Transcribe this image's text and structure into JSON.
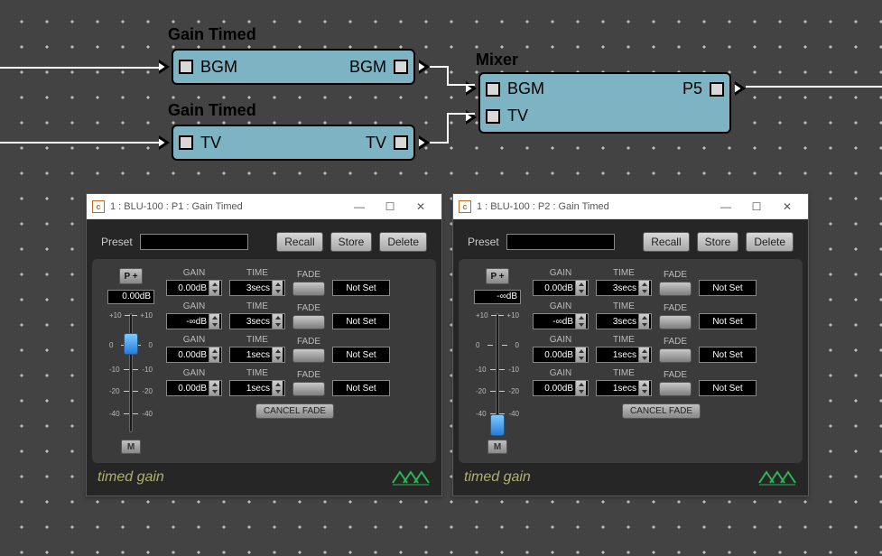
{
  "canvas": {
    "node_a": {
      "title": "Gain Timed",
      "in_label": "BGM",
      "out_label": "BGM"
    },
    "node_b": {
      "title": "Gain Timed",
      "in_label": "TV",
      "out_label": "TV"
    },
    "mixer": {
      "title": "Mixer",
      "in1": "BGM",
      "in2": "TV",
      "out_label": "P5"
    },
    "colors": {
      "node_fill": "#7eb3c4",
      "node_border": "#000000",
      "wire": "#ffffff",
      "bg": "#434343"
    }
  },
  "editor1": {
    "title": "1 : BLU-100 : P1 : Gain Timed",
    "preset_label": "Preset",
    "buttons": {
      "recall": "Recall",
      "store": "Store",
      "delete": "Delete",
      "cancel_fade": "CANCEL FADE"
    },
    "pplus": "P +",
    "mute": "M",
    "readout": "0.00dB",
    "slider_pos_pct": 24,
    "ticks": [
      "+10",
      "+10",
      "0",
      "0",
      "-10",
      "-10",
      "-20",
      "-20",
      "-40",
      "-40"
    ],
    "rows": [
      {
        "gain": "0.00dB",
        "time": "3secs",
        "notset": "Not Set",
        "labels": {
          "gain": "GAIN",
          "time": "TIME",
          "fade": "FADE"
        }
      },
      {
        "gain": "-∞dB",
        "time": "3secs",
        "notset": "Not Set",
        "labels": {
          "gain": "GAIN",
          "time": "TIME",
          "fade": "FADE"
        }
      },
      {
        "gain": "0.00dB",
        "time": "1secs",
        "notset": "Not Set",
        "labels": {
          "gain": "GAIN",
          "time": "TIME",
          "fade": "FADE"
        }
      },
      {
        "gain": "0.00dB",
        "time": "1secs",
        "notset": "Not Set",
        "labels": {
          "gain": "GAIN",
          "time": "TIME",
          "fade": "FADE"
        }
      }
    ],
    "footer": "timed gain"
  },
  "editor2": {
    "title": "1 : BLU-100 : P2 : Gain Timed",
    "preset_label": "Preset",
    "buttons": {
      "recall": "Recall",
      "store": "Store",
      "delete": "Delete",
      "cancel_fade": "CANCEL FADE"
    },
    "pplus": "P +",
    "mute": "M",
    "readout": "-∞dB",
    "slider_pos_pct": 88,
    "ticks": [
      "+10",
      "+10",
      "0",
      "0",
      "-10",
      "-10",
      "-20",
      "-20",
      "-40",
      "-40"
    ],
    "rows": [
      {
        "gain": "0.00dB",
        "time": "3secs",
        "notset": "Not Set",
        "labels": {
          "gain": "GAIN",
          "time": "TIME",
          "fade": "FADE"
        }
      },
      {
        "gain": "-∞dB",
        "time": "3secs",
        "notset": "Not Set",
        "labels": {
          "gain": "GAIN",
          "time": "TIME",
          "fade": "FADE"
        }
      },
      {
        "gain": "0.00dB",
        "time": "1secs",
        "notset": "Not Set",
        "labels": {
          "gain": "GAIN",
          "time": "TIME",
          "fade": "FADE"
        }
      },
      {
        "gain": "0.00dB",
        "time": "1secs",
        "notset": "Not Set",
        "labels": {
          "gain": "GAIN",
          "time": "TIME",
          "fade": "FADE"
        }
      }
    ],
    "footer": "timed gain"
  }
}
